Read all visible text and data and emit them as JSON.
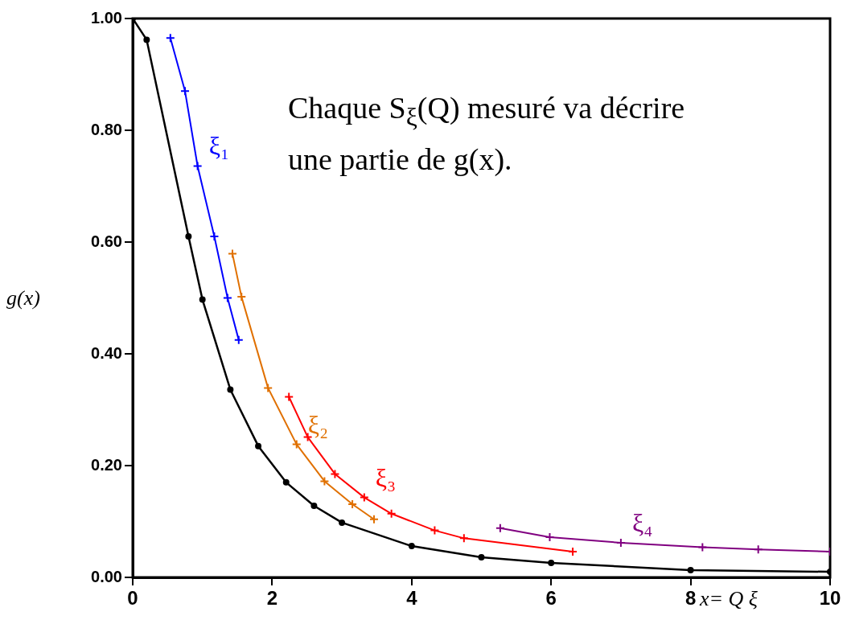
{
  "chart_data": {
    "type": "line",
    "xlabel": "x= Q ξ",
    "ylabel": "g(x)",
    "annotations": [
      "Chaque S$_{ξ}$(Q) mesuré va décrire une partie de g(x)."
    ],
    "xlim": [
      0,
      10
    ],
    "xticks": [
      0,
      2,
      4,
      6,
      8,
      10
    ],
    "ylim": [
      0,
      1
    ],
    "yticks": [
      {
        "value": 0,
        "label": "0.00"
      },
      {
        "value": 0.2,
        "label": "0.20"
      },
      {
        "value": 0.4,
        "label": "0.40"
      },
      {
        "value": 0.6,
        "label": "0.60"
      },
      {
        "value": 0.8,
        "label": "0.80"
      },
      {
        "value": 1,
        "label": "1.00"
      }
    ],
    "grid": false,
    "legend": false,
    "series": [
      {
        "color": "#000000",
        "marker": "circle",
        "x": [
          0,
          0.2,
          0.8,
          1.0,
          1.4,
          1.8,
          2.2,
          2.6,
          3,
          4,
          5,
          6,
          8,
          10
        ],
        "values": [
          1,
          0.962,
          0.61,
          0.497,
          0.336,
          0.235,
          0.17,
          0.128,
          0.098,
          0.056,
          0.036,
          0.026,
          0.013,
          0.01
        ]
      },
      {
        "name": "ξ₁",
        "color": "#0000ff",
        "marker": "cross",
        "x": [
          0.54,
          0.75,
          0.93,
          1.17,
          1.36,
          1.52
        ],
        "values": [
          0.965,
          0.87,
          0.736,
          0.61,
          0.5,
          0.425
        ]
      },
      {
        "name": "ξ₂",
        "color": "#e07000",
        "marker": "cross",
        "x": [
          1.43,
          1.56,
          1.94,
          2.35,
          2.75,
          3.15,
          3.46
        ],
        "values": [
          0.579,
          0.502,
          0.339,
          0.238,
          0.172,
          0.131,
          0.104
        ]
      },
      {
        "name": "ξ₃",
        "color": "#ff0000",
        "marker": "cross",
        "x": [
          2.24,
          2.51,
          2.9,
          3.32,
          3.71,
          4.33,
          4.75,
          6.31
        ],
        "values": [
          0.323,
          0.251,
          0.185,
          0.143,
          0.114,
          0.084,
          0.07,
          0.046
        ]
      },
      {
        "name": "ξ₄",
        "color": "#800080",
        "marker": "cross",
        "x": [
          5.27,
          5.98,
          7.0,
          8.17,
          8.97,
          10.0
        ],
        "values": [
          0.088,
          0.072,
          0.062,
          0.054,
          0.05,
          0.046
        ]
      }
    ]
  }
}
